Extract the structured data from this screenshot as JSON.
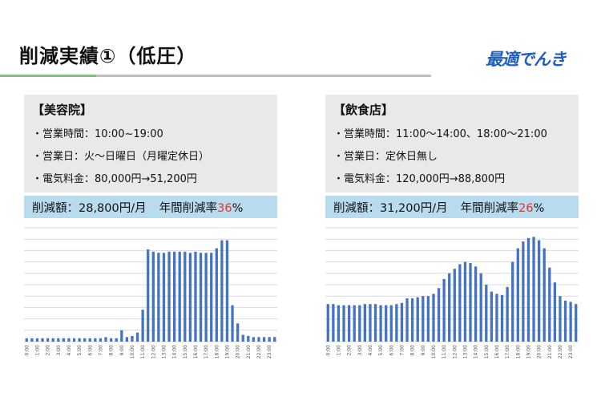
{
  "title": "削減実績①（低圧）",
  "brand": "最適でんき",
  "panels": [
    {
      "heading": "【美容院】",
      "lines": [
        "・営業時間：10:00~19:00",
        "・営業日：火～日曜日（月曜定休日）",
        "・電気料金：80,000円→51,200円"
      ],
      "saving_text": "削減額：28,800円/月",
      "annual_label": "年間削減率",
      "annual_pct": "36",
      "pct_sign": "%"
    },
    {
      "heading": "【飲食店】",
      "lines": [
        "・営業時間：11:00～14:00、18:00～21:00",
        "・営業日：定休日無し",
        "・電気料金：120,000円→88,800円"
      ],
      "saving_text": "削減額：31,200円/月",
      "annual_label": "年間削減率",
      "annual_pct": "26",
      "pct_sign": "%"
    }
  ],
  "colors": {
    "bar": "#4472c4",
    "band": "#b8dcee",
    "highlight": "#e5322d",
    "brand": "#1f5fbf"
  },
  "chart_data": [
    {
      "type": "bar",
      "grid": true,
      "x_tick_labels": [
        "0:00",
        "1:00",
        "2:00",
        "3:00",
        "4:00",
        "5:00",
        "6:00",
        "7:00",
        "8:00",
        "9:00",
        "10:00",
        "11:00",
        "12:00",
        "13:00",
        "14:00",
        "15:00",
        "16:00",
        "17:00",
        "18:00",
        "19:00",
        "20:00",
        "21:00",
        "22:00",
        "23:00"
      ],
      "values": [
        3,
        3,
        3,
        3,
        3,
        3,
        3,
        3,
        3,
        3,
        3,
        3,
        3,
        3,
        3,
        4,
        3,
        3,
        10,
        4,
        5,
        8,
        28,
        81,
        79,
        78,
        78,
        79,
        79,
        79,
        79,
        78,
        79,
        78,
        78,
        78,
        82,
        89,
        89,
        32,
        16,
        6,
        5,
        4,
        4,
        4,
        4,
        4
      ],
      "ylim": [
        0,
        100
      ]
    },
    {
      "type": "bar",
      "grid": true,
      "x_tick_labels": [
        "0:00",
        "1:00",
        "2:00",
        "3:00",
        "4:00",
        "5:00",
        "6:00",
        "7:00",
        "8:00",
        "9:00",
        "10:00",
        "11:00",
        "12:00",
        "13:00",
        "14:00",
        "15:00",
        "16:00",
        "17:00",
        "18:00",
        "19:00",
        "20:00",
        "21:00",
        "22:00",
        "23:00"
      ],
      "values": [
        33,
        33,
        32,
        32,
        32,
        32,
        32,
        33,
        33,
        33,
        32,
        32,
        32,
        33,
        34,
        38,
        38,
        39,
        40,
        40,
        42,
        47,
        55,
        60,
        64,
        68,
        70,
        69,
        66,
        60,
        50,
        44,
        42,
        41,
        48,
        70,
        82,
        88,
        91,
        92,
        89,
        82,
        65,
        52,
        40,
        36,
        35,
        33
      ],
      "ylim": [
        0,
        100
      ]
    }
  ]
}
